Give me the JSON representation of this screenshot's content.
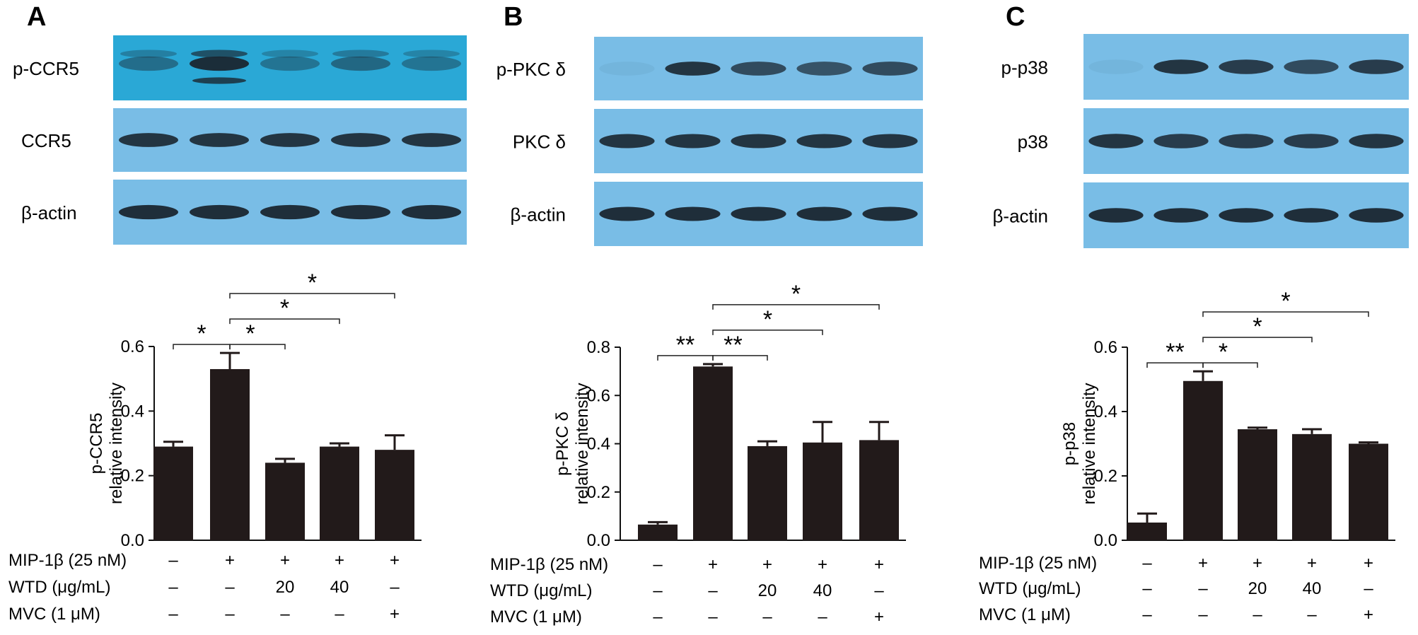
{
  "panels": [
    {
      "letter": "A",
      "blots": [
        {
          "label": "p-CCR5",
          "intensities": [
            0.45,
            0.95,
            0.4,
            0.5,
            0.4
          ],
          "extra_band_lane": 1
        },
        {
          "label": "CCR5",
          "intensities": [
            0.9,
            0.9,
            0.9,
            0.9,
            0.9
          ]
        },
        {
          "label": "β-actin",
          "intensities": [
            0.95,
            0.95,
            0.95,
            0.95,
            0.95
          ]
        }
      ]
    },
    {
      "letter": "B",
      "blots": [
        {
          "label": "p-PKC δ",
          "intensities": [
            0.05,
            0.9,
            0.75,
            0.7,
            0.75
          ]
        },
        {
          "label": "PKC δ",
          "intensities": [
            0.9,
            0.9,
            0.9,
            0.9,
            0.9
          ]
        },
        {
          "label": "β-actin",
          "intensities": [
            0.95,
            0.95,
            0.95,
            0.95,
            0.95
          ]
        }
      ]
    },
    {
      "letter": "C",
      "blots": [
        {
          "label": "p-p38",
          "intensities": [
            0.05,
            0.9,
            0.85,
            0.75,
            0.85
          ]
        },
        {
          "label": "p38",
          "intensities": [
            0.9,
            0.85,
            0.85,
            0.85,
            0.9
          ]
        },
        {
          "label": "β-actin",
          "intensities": [
            0.95,
            0.95,
            0.95,
            0.95,
            0.95
          ]
        }
      ]
    }
  ],
  "chart_data": [
    {
      "type": "bar",
      "panel": "A",
      "ylabel": [
        "p-CCR5",
        "relative intensity"
      ],
      "ylim": [
        0,
        0.6
      ],
      "yticks": [
        "0.0",
        "0.2",
        "0.4",
        "0.6"
      ],
      "values": [
        0.29,
        0.53,
        0.24,
        0.29,
        0.28
      ],
      "errors": [
        0.015,
        0.05,
        0.012,
        0.01,
        0.045
      ],
      "bar_color": "#221a1a",
      "significance": [
        {
          "from": 0,
          "to": 1,
          "label": "*"
        },
        {
          "from": 1,
          "to": 2,
          "label": "*"
        },
        {
          "from": 1,
          "to": 3,
          "label": "*"
        },
        {
          "from": 1,
          "to": 4,
          "label": "*"
        }
      ]
    },
    {
      "type": "bar",
      "panel": "B",
      "ylabel": [
        "p-PKC δ",
        "relative intensity"
      ],
      "ylim": [
        0,
        0.8
      ],
      "yticks": [
        "0.0",
        "0.2",
        "0.4",
        "0.6",
        "0.8"
      ],
      "values": [
        0.065,
        0.72,
        0.39,
        0.405,
        0.415
      ],
      "errors": [
        0.01,
        0.01,
        0.02,
        0.085,
        0.075
      ],
      "bar_color": "#221a1a",
      "significance": [
        {
          "from": 0,
          "to": 1,
          "label": "**"
        },
        {
          "from": 1,
          "to": 2,
          "label": "**"
        },
        {
          "from": 1,
          "to": 3,
          "label": "*"
        },
        {
          "from": 1,
          "to": 4,
          "label": "*"
        }
      ]
    },
    {
      "type": "bar",
      "panel": "C",
      "ylabel": [
        "p-p38",
        "relative intensity"
      ],
      "ylim": [
        0,
        0.6
      ],
      "yticks": [
        "0.0",
        "0.2",
        "0.4",
        "0.6"
      ],
      "values": [
        0.055,
        0.495,
        0.345,
        0.33,
        0.3
      ],
      "errors": [
        0.028,
        0.03,
        0.005,
        0.015,
        0.004
      ],
      "bar_color": "#221a1a",
      "significance": [
        {
          "from": 0,
          "to": 1,
          "label": "**"
        },
        {
          "from": 1,
          "to": 2,
          "label": "*"
        },
        {
          "from": 1,
          "to": 3,
          "label": "*"
        },
        {
          "from": 1,
          "to": 4,
          "label": "*"
        }
      ]
    }
  ],
  "conditions": [
    {
      "label": "MIP-1β (25 nM)",
      "values": [
        "–",
        "+",
        "+",
        "+",
        "+"
      ]
    },
    {
      "label": "WTD (μg/mL)",
      "values": [
        "–",
        "–",
        "20",
        "40",
        "–"
      ]
    },
    {
      "label": "MVC (1 μM)",
      "values": [
        "–",
        "–",
        "–",
        "–",
        "+"
      ]
    }
  ],
  "colors": {
    "blot_bg_a": "#2aa8d6",
    "blot_bg": "#79bde6",
    "band": "#1a2630"
  }
}
